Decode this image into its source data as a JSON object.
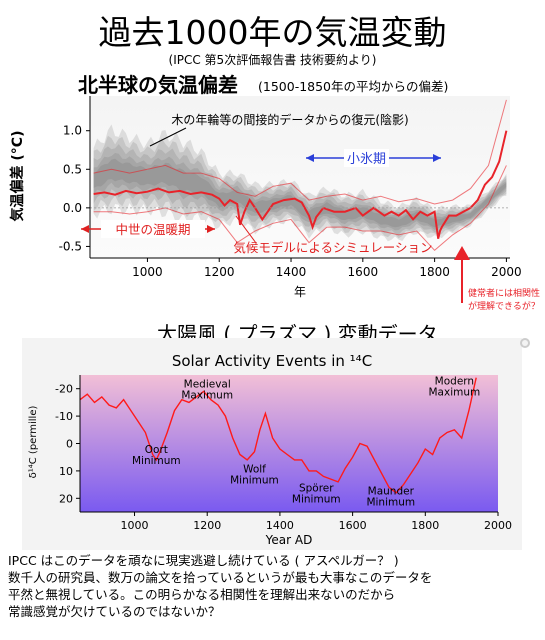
{
  "page": {
    "title": "過去1000年の気温変動",
    "source_note": "(IPCC 第5次評価報告書  技術要約より)",
    "side_note": "健常者には相関性が理解できるが？",
    "footer_lines": [
      "IPCC はこのデータを頑なに現実逃避し続けている ( アスペルガー？ )",
      "数千人の研究員、数万の論文を拾っているというが最も大事なこのデータを",
      "平然と無視している。この明らかなる相関性を理解出来ないのだから",
      "常識感覚が欠けているのではないか？"
    ]
  },
  "colors": {
    "simulation_red": "#e8232a",
    "annotation_red": "#e02020",
    "annotation_blue": "#2a3fd8",
    "reconstruction_gray": "#555555",
    "solar_line": "#ff1a1a",
    "solar_bg_top": "#f2bfd6",
    "solar_bg_bottom": "#7a5af0"
  },
  "chart_data": [
    {
      "type": "line",
      "title": "北半球の気温偏差",
      "subtitle": "(1500-1850年の平均からの偏差)",
      "xlabel": "年",
      "ylabel": "気温偏差 (°C)",
      "xlim": [
        840,
        2010
      ],
      "ylim": [
        -0.65,
        1.45
      ],
      "xticks": [
        1000,
        1200,
        1400,
        1600,
        1800,
        2000
      ],
      "yticks": [
        -0.5,
        0.0,
        0.5,
        1.0
      ],
      "ytick_labels": [
        "-0.5",
        "0.0",
        "0.5",
        "1.0"
      ],
      "grid": false,
      "annotations": {
        "reconstruction": "木の年輪等の間接的データからの復元(陰影)",
        "little_ice_age": "小氷期",
        "medieval_warm": "中世の温暖期",
        "simulation": "気候モデルによるシミュレーション"
      },
      "series": [
        {
          "role": "simulation_mean",
          "x": [
            850,
            880,
            910,
            940,
            970,
            1000,
            1030,
            1060,
            1090,
            1120,
            1150,
            1180,
            1200,
            1215,
            1230,
            1250,
            1258,
            1270,
            1285,
            1300,
            1320,
            1350,
            1380,
            1410,
            1430,
            1450,
            1460,
            1470,
            1490,
            1520,
            1550,
            1580,
            1600,
            1630,
            1660,
            1680,
            1700,
            1720,
            1740,
            1760,
            1780,
            1800,
            1810,
            1815,
            1820,
            1840,
            1860,
            1880,
            1900,
            1920,
            1940,
            1960,
            1980,
            2000
          ],
          "y": [
            0.18,
            0.2,
            0.17,
            0.22,
            0.19,
            0.21,
            0.25,
            0.2,
            0.22,
            0.18,
            0.2,
            0.17,
            0.12,
            0.03,
            0.1,
            0.05,
            -0.22,
            -0.05,
            0.1,
            0.0,
            -0.15,
            0.05,
            0.1,
            0.12,
            0.07,
            -0.1,
            -0.25,
            -0.12,
            0.0,
            -0.05,
            -0.05,
            0.0,
            -0.1,
            0.0,
            -0.1,
            -0.05,
            -0.1,
            -0.03,
            -0.15,
            -0.05,
            -0.1,
            -0.05,
            -0.4,
            -0.3,
            -0.25,
            -0.1,
            -0.1,
            -0.05,
            0.0,
            0.1,
            0.3,
            0.4,
            0.6,
            1.0
          ]
        },
        {
          "role": "simulation_upper",
          "x": [
            850,
            900,
            950,
            1000,
            1050,
            1100,
            1150,
            1200,
            1250,
            1300,
            1350,
            1400,
            1450,
            1500,
            1550,
            1600,
            1650,
            1700,
            1750,
            1800,
            1850,
            1900,
            1950,
            2000
          ],
          "y": [
            0.45,
            0.5,
            0.45,
            0.5,
            0.55,
            0.45,
            0.45,
            0.38,
            0.2,
            0.15,
            0.28,
            0.32,
            0.1,
            0.15,
            0.18,
            0.1,
            0.15,
            0.08,
            0.12,
            0.05,
            0.1,
            0.25,
            0.55,
            1.4
          ]
        },
        {
          "role": "simulation_lower",
          "x": [
            850,
            900,
            950,
            1000,
            1050,
            1100,
            1150,
            1200,
            1250,
            1300,
            1350,
            1400,
            1450,
            1500,
            1550,
            1600,
            1650,
            1700,
            1750,
            1800,
            1850,
            1900,
            1950,
            2000
          ],
          "y": [
            -0.05,
            -0.05,
            -0.08,
            -0.05,
            0.0,
            -0.08,
            -0.05,
            -0.15,
            -0.45,
            -0.3,
            -0.2,
            -0.15,
            -0.45,
            -0.25,
            -0.25,
            -0.3,
            -0.3,
            -0.35,
            -0.3,
            -0.55,
            -0.35,
            -0.2,
            0.05,
            0.55
          ]
        },
        {
          "role": "reconstruction_center",
          "x": [
            850,
            900,
            950,
            1000,
            1050,
            1100,
            1150,
            1200,
            1250,
            1300,
            1350,
            1400,
            1450,
            1500,
            1550,
            1600,
            1650,
            1700,
            1750,
            1800,
            1850,
            1900,
            1950,
            2000
          ],
          "y": [
            0.35,
            0.5,
            0.45,
            0.4,
            0.45,
            0.35,
            0.3,
            0.1,
            0.15,
            0.0,
            0.05,
            0.1,
            -0.1,
            0.0,
            -0.1,
            -0.05,
            -0.15,
            -0.2,
            -0.1,
            -0.2,
            -0.15,
            -0.1,
            0.1,
            0.3
          ]
        },
        {
          "role": "reconstruction_spread",
          "x": [
            850,
            900,
            950,
            1000,
            1050,
            1100,
            1150,
            1200,
            1250,
            1300,
            1350,
            1400,
            1450,
            1500,
            1550,
            1600,
            1650,
            1700,
            1750,
            1800,
            1850,
            1900,
            1950,
            2000
          ],
          "y": [
            0.5,
            0.6,
            0.55,
            0.5,
            0.6,
            0.6,
            0.5,
            0.4,
            0.35,
            0.35,
            0.3,
            0.3,
            0.3,
            0.3,
            0.3,
            0.3,
            0.28,
            0.25,
            0.25,
            0.22,
            0.2,
            0.15,
            0.15,
            0.15
          ]
        }
      ]
    },
    {
      "type": "line",
      "heading": "太陽風 ( プラズマ ) 変動データ",
      "title": "Solar Activity Events in ¹⁴C",
      "xlabel": "Year AD",
      "ylabel": "δ¹⁴C (permille)",
      "xlim": [
        850,
        2000
      ],
      "ylim": [
        25,
        -25
      ],
      "y_inverted": true,
      "xticks": [
        1000,
        1200,
        1400,
        1600,
        1800,
        2000
      ],
      "yticks": [
        -20,
        -10,
        0,
        10,
        20
      ],
      "ytick_labels": [
        "-20",
        "-10",
        "0",
        "10",
        "20"
      ],
      "grid": false,
      "annotations": [
        {
          "text": "Medieval Maximum",
          "x": 1200,
          "y": -19
        },
        {
          "text": "Oort Minimum",
          "x": 1060,
          "y": 5
        },
        {
          "text": "Wolf Minimum",
          "x": 1330,
          "y": 12
        },
        {
          "text": "Spörer Minimum",
          "x": 1500,
          "y": 19
        },
        {
          "text": "Maunder Minimum",
          "x": 1705,
          "y": 20
        },
        {
          "text": "Modern Maximum",
          "x": 1880,
          "y": -20
        }
      ],
      "series": [
        {
          "name": "δ¹⁴C",
          "x": [
            850,
            870,
            890,
            910,
            930,
            950,
            970,
            990,
            1010,
            1030,
            1050,
            1060,
            1070,
            1090,
            1110,
            1130,
            1150,
            1170,
            1190,
            1210,
            1230,
            1250,
            1270,
            1290,
            1310,
            1330,
            1345,
            1360,
            1380,
            1400,
            1420,
            1440,
            1460,
            1480,
            1500,
            1520,
            1540,
            1560,
            1580,
            1600,
            1620,
            1640,
            1660,
            1680,
            1700,
            1720,
            1740,
            1760,
            1780,
            1800,
            1820,
            1840,
            1860,
            1880,
            1900,
            1920,
            1940
          ],
          "y": [
            -16,
            -18,
            -15,
            -17,
            -14,
            -13,
            -16,
            -12,
            -8,
            -4,
            4,
            6,
            3,
            -4,
            -12,
            -16,
            -15,
            -17,
            -19,
            -16,
            -14,
            -10,
            -2,
            4,
            6,
            3,
            -5,
            -11,
            -2,
            2,
            4,
            6,
            6,
            10,
            10,
            12,
            13,
            14,
            9,
            5,
            0,
            1,
            6,
            11,
            16,
            18,
            15,
            11,
            7,
            2,
            4,
            -2,
            -4,
            -5,
            -2,
            -12,
            -24
          ]
        }
      ]
    }
  ]
}
